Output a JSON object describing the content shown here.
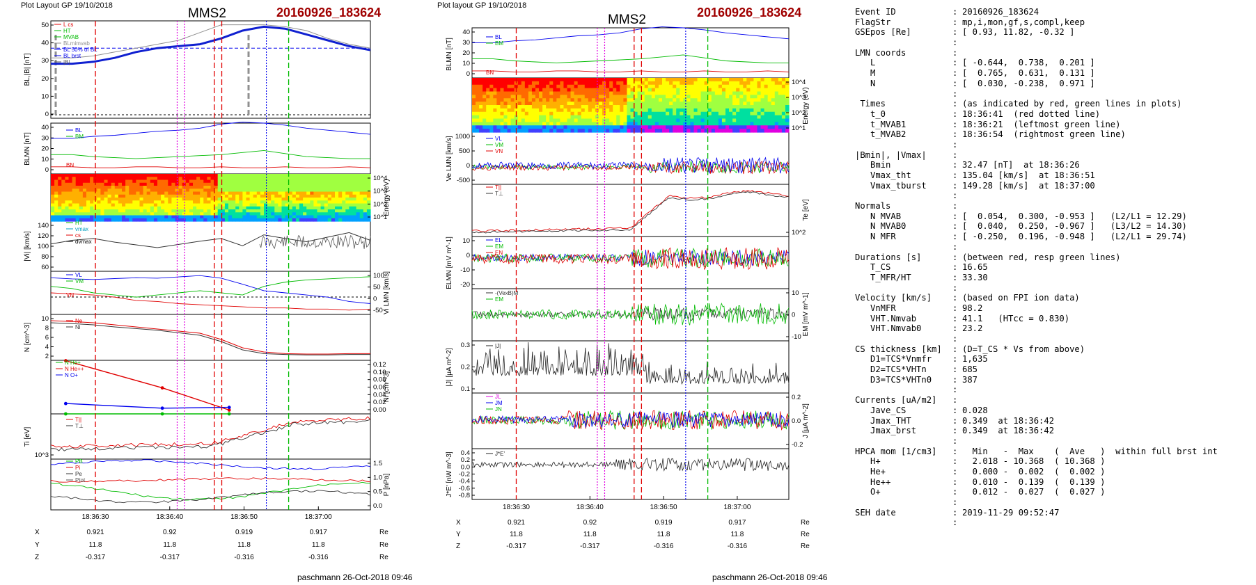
{
  "header_left": "Plot Layout GP 19/10/2018",
  "header_right": "Plot layout GP 19/10/2018",
  "spacecraft": "MMS2",
  "event_id": "20160926_183624",
  "footer": "paschmann 26-Oct-2018 09:46",
  "colors": {
    "event": "#a00000",
    "red": "#e00000",
    "green": "#00bb00",
    "blue": "#0000ee",
    "magenta": "#e000e0",
    "blueline": "#1020d0",
    "gray": "#909090"
  },
  "time_axis": {
    "range": [
      "18:36:24",
      "18:37:07"
    ],
    "ticks": [
      "18:36:30",
      "18:36:40",
      "18:36:50",
      "18:37:00"
    ],
    "markers": {
      "red_dashed": [
        "18:36:30",
        "18:36:46",
        "18:36:47"
      ],
      "magenta_dotted": [
        "18:36:41",
        "18:36:42"
      ],
      "blue_dotted": "18:36:53",
      "green_dashed": "18:36:56"
    }
  },
  "position_table": {
    "rows": [
      {
        "label": "X",
        "values": [
          "0.921",
          "0.92",
          "0.919",
          "0.917"
        ],
        "unit": "Re"
      },
      {
        "label": "Y",
        "values": [
          "11.8",
          "11.8",
          "11.8",
          "11.8"
        ],
        "unit": "Re"
      },
      {
        "label": "Z",
        "values": [
          "-0.317",
          "-0.317",
          "-0.316",
          "-0.316"
        ],
        "unit": "Re"
      }
    ]
  },
  "chart_data": [
    {
      "type": "line",
      "panel": "left-B",
      "ylabel": "BL,|B| [nT]",
      "ylim": [
        0,
        50
      ],
      "yticks": [
        "0",
        "10",
        "20",
        "30",
        "40",
        "50"
      ],
      "legend": [
        "L cs",
        "HT",
        "MVAB",
        "BLmimvab",
        "BL 50% of BL",
        "BL brst",
        "|B|"
      ],
      "series": [
        {
          "name": "BL",
          "values": [
            28,
            28,
            29,
            31,
            34,
            36,
            37,
            38,
            41,
            45,
            47,
            46,
            43,
            40,
            37,
            35
          ]
        },
        {
          "name": "|B|",
          "values": [
            31,
            31,
            32,
            34,
            36,
            38,
            40,
            44,
            48,
            48,
            48,
            47,
            45,
            41,
            38,
            36
          ]
        }
      ],
      "threshold": 36
    },
    {
      "type": "line",
      "panel": "left-BLMN",
      "ylabel": "BLMN [nT]",
      "ylim": [
        -5,
        45
      ],
      "yticks": [
        "0",
        "10",
        "20",
        "30",
        "40"
      ],
      "legend": [
        "BL",
        "BM",
        "BN"
      ],
      "series": [
        {
          "name": "BL",
          "values": [
            30,
            30,
            32,
            33,
            35,
            37,
            38,
            40,
            44,
            46,
            45,
            43,
            40,
            38,
            36,
            34
          ]
        },
        {
          "name": "BM",
          "values": [
            14,
            14,
            12,
            11,
            10,
            11,
            12,
            13,
            14,
            16,
            18,
            15,
            12,
            11,
            10,
            10
          ]
        },
        {
          "name": "BN",
          "values": [
            2,
            2,
            1,
            1,
            2,
            2,
            1,
            1,
            2,
            1,
            1,
            2,
            1,
            1,
            2,
            1
          ]
        }
      ]
    },
    {
      "type": "heatmap",
      "panel": "left-spectrogram",
      "ylabel": "Energy (eV)",
      "yticks": [
        "10^1",
        "10^2",
        "10^3",
        "10^4"
      ]
    },
    {
      "type": "line",
      "panel": "left-Vi",
      "ylabel": "|Vi| [km/s]",
      "ylim": [
        40,
        150
      ],
      "yticks": [
        "60",
        "80",
        "100",
        "120",
        "140"
      ],
      "legend": [
        "HT",
        "vmax",
        "cs",
        "dvmax"
      ],
      "series": [
        {
          "name": "|Vi|",
          "values": [
            100,
            108,
            112,
            104,
            98,
            92,
            99,
            106,
            112,
            96,
            120,
            112,
            105,
            115,
            125,
            108
          ]
        }
      ]
    },
    {
      "type": "line",
      "panel": "left-ViLMN",
      "ylabel": "Vi LMN [km/s]",
      "ylim": [
        -70,
        130
      ],
      "yticks": [
        "-50",
        "0",
        "50",
        "100"
      ],
      "legend": [
        "VL",
        "VM",
        "VN"
      ],
      "series": [
        {
          "name": "VL",
          "values": [
            100,
            95,
            92,
            96,
            100,
            98,
            104,
            110,
            98,
            70,
            40,
            30,
            20,
            10,
            -10,
            -20
          ]
        },
        {
          "name": "VM",
          "values": [
            60,
            50,
            30,
            20,
            10,
            20,
            30,
            40,
            30,
            20,
            60,
            80,
            90,
            95,
            100,
            105
          ]
        },
        {
          "name": "VN",
          "values": [
            30,
            25,
            20,
            10,
            -5,
            -10,
            -20,
            -25,
            -30,
            -35,
            -40,
            -40,
            -45,
            -45,
            -50,
            -45
          ]
        }
      ]
    },
    {
      "type": "line",
      "panel": "left-N",
      "ylabel": "N [cm^-3]",
      "ylim": [
        0,
        11
      ],
      "yticks": [
        "2",
        "4",
        "6",
        "8",
        "10"
      ],
      "legend": [
        "Ne",
        "Ni"
      ],
      "series": [
        {
          "name": "Ne",
          "values": [
            9.5,
            9.3,
            9,
            8.5,
            8,
            7.5,
            7,
            6.5,
            5,
            3,
            2,
            1.6,
            1.5,
            1.5,
            1.6,
            1.6
          ]
        },
        {
          "name": "Ni",
          "values": [
            9,
            8.8,
            8.5,
            8,
            7.6,
            7.2,
            6.6,
            6,
            4.5,
            2.5,
            1.6,
            1.4,
            1.3,
            1.3,
            1.4,
            1.4
          ]
        }
      ]
    },
    {
      "type": "line",
      "panel": "left-Nions",
      "ylabel": "Ni [cm^-3]",
      "ylim": [
        0,
        0.14
      ],
      "yticks": [
        "0.00",
        "0.02",
        "0.04",
        "0.06",
        "0.08",
        "0.10",
        "0.12"
      ],
      "legend": [
        "N He+",
        "N He++",
        "N O+"
      ],
      "series": [
        {
          "name": "N He+",
          "x": [
            "18:36:26",
            "18:36:39",
            "18:36:48"
          ],
          "values": [
            0.0,
            0.0,
            0.0
          ]
        },
        {
          "name": "N He++",
          "x": [
            "18:36:26",
            "18:36:39",
            "18:36:48"
          ],
          "values": [
            0.139,
            0.068,
            0.01
          ]
        },
        {
          "name": "N O+",
          "x": [
            "18:36:26",
            "18:36:39",
            "18:36:48"
          ],
          "values": [
            0.027,
            0.015,
            0.017
          ]
        }
      ]
    },
    {
      "type": "line",
      "panel": "left-Ti",
      "ylabel": "Ti [eV]",
      "yticks": [
        "10^3"
      ],
      "legend": [
        "T||",
        "T⊥"
      ]
    },
    {
      "type": "line",
      "panel": "left-P",
      "ylabel": "P [nPa]",
      "ylim": [
        0,
        1.6
      ],
      "yticks": [
        "0.0",
        "0.5",
        "1.0",
        "1.5"
      ],
      "legend": [
        "PB",
        "Pi",
        "Pe",
        "Ptot"
      ]
    },
    {
      "type": "line",
      "panel": "right-BLMN",
      "ylabel": "BLMN [nT]",
      "yticks": [
        "0",
        "10",
        "20",
        "30",
        "40"
      ],
      "legend": [
        "BL",
        "BM",
        "BN"
      ]
    },
    {
      "type": "heatmap",
      "panel": "right-spectrogram",
      "ylabel": "Energy (eV)",
      "yticks": [
        "10^1",
        "10^2",
        "10^3",
        "10^4"
      ]
    },
    {
      "type": "line",
      "panel": "right-Ve",
      "ylabel": "Ve LMN [km/s]",
      "yticks": [
        "-500",
        "0",
        "500",
        "1000"
      ],
      "legend": [
        "VL",
        "VM",
        "VN"
      ]
    },
    {
      "type": "line",
      "panel": "right-Te",
      "ylabel": "Te [eV]",
      "yticks": [
        "10^2"
      ],
      "legend": [
        "T||",
        "T⊥"
      ]
    },
    {
      "type": "line",
      "panel": "right-E",
      "ylabel": "ELMN [mV m^-1]",
      "yticks": [
        "-20",
        "-10",
        "0",
        "10"
      ],
      "legend": [
        "EL",
        "EM",
        "EN"
      ]
    },
    {
      "type": "line",
      "panel": "right-EM",
      "ylabel": "EM [mV m^-1]",
      "yticks": [
        "-10",
        "0",
        "10"
      ],
      "legend": [
        "-(VexB)M",
        "EM"
      ]
    },
    {
      "type": "line",
      "panel": "right-J",
      "ylabel": "|J| [μA m^-2]",
      "yticks": [
        "0.1",
        "0.2",
        "0.3"
      ],
      "legend": [
        "|J|"
      ]
    },
    {
      "type": "line",
      "panel": "right-JLMN",
      "ylabel": "J [μA m^-2]",
      "yticks": [
        "-0.2",
        "0.0",
        "0.2"
      ],
      "legend": [
        "JL",
        "JM",
        "JN"
      ]
    },
    {
      "type": "line",
      "panel": "right-JE",
      "ylabel": "J*E' [nW m^-3]",
      "yticks": [
        "-0.8",
        "-0.6",
        "-0.4",
        "-0.2",
        "0.0",
        "0.2",
        "0.4"
      ],
      "legend": [
        "J*E'"
      ]
    }
  ],
  "info_panel": [
    {
      "l": "Event ID",
      "v": "20160926_183624"
    },
    {
      "l": "FlagStr",
      "v": "mp,i,mon,gf,s,compl,keep"
    },
    {
      "l": "GSEpos [Re]",
      "v": "[ 0.93, 11.82, -0.32 ]"
    },
    {
      "l": "",
      "v": ""
    },
    {
      "l": "LMN coords",
      "v": ""
    },
    {
      "l": "   L",
      "v": "[ -0.644,  0.738,  0.201 ]"
    },
    {
      "l": "   M",
      "v": "[  0.765,  0.631,  0.131 ]"
    },
    {
      "l": "   N",
      "v": "[  0.030, -0.238,  0.971 ]"
    },
    {
      "l": "",
      "v": ""
    },
    {
      "l": " Times",
      "v": "(as indicated by red, green lines in plots)"
    },
    {
      "l": "   t_0",
      "v": "18:36:41  (red dotted line)"
    },
    {
      "l": "   t_MVAB1",
      "v": "18:36:21  (leftmost green line)"
    },
    {
      "l": "   t_MVAB2",
      "v": "18:36:54  (rightmost green line)"
    },
    {
      "l": "",
      "v": ""
    },
    {
      "l": "|Bmin|, |Vmax|",
      "v": ""
    },
    {
      "l": "   Bmin",
      "v": "32.47 [nT]  at 18:36:26"
    },
    {
      "l": "   Vmax_tht",
      "v": "135.04 [km/s]  at 18:36:51"
    },
    {
      "l": "   Vmax_tburst",
      "v": "149.28 [km/s]  at 18:37:00"
    },
    {
      "l": "",
      "v": ""
    },
    {
      "l": "Normals",
      "v": ""
    },
    {
      "l": "   N MVAB",
      "v": "[  0.054,  0.300, -0.953 ]   (L2/L1 = 12.29)"
    },
    {
      "l": "   N MVAB0",
      "v": "[  0.040,  0.250, -0.967 ]   (L3/L2 = 14.30)"
    },
    {
      "l": "   N MFR",
      "v": "[ -0.250,  0.196, -0.948 ]   (L2/L1 = 29.74)"
    },
    {
      "l": "",
      "v": ""
    },
    {
      "l": "Durations [s]",
      "v": "(between red, resp green lines)"
    },
    {
      "l": "   T_CS",
      "v": "16.65"
    },
    {
      "l": "   T_MFR/HT",
      "v": "33.30"
    },
    {
      "l": "",
      "v": ""
    },
    {
      "l": "Velocity [km/s]",
      "v": "(based on FPI ion data)"
    },
    {
      "l": "   VnMFR",
      "v": "98.2"
    },
    {
      "l": "   VHT.Nmvab",
      "v": "41.1   (HTcc = 0.830)"
    },
    {
      "l": "   VHT.Nmvab0",
      "v": "23.2"
    },
    {
      "l": "",
      "v": ""
    },
    {
      "l": "CS thickness [km]",
      "v": "(D=T_CS * Vs from above)"
    },
    {
      "l": "   D1=TCS*Vnmfr",
      "v": "1,635"
    },
    {
      "l": "   D2=TCS*VHTn",
      "v": "685"
    },
    {
      "l": "   D3=TCS*VHTn0",
      "v": "387"
    },
    {
      "l": "",
      "v": ""
    },
    {
      "l": "Currents [uA/m2]",
      "v": ""
    },
    {
      "l": "   Jave_CS",
      "v": "0.028"
    },
    {
      "l": "   Jmax_THT",
      "v": "0.349  at 18:36:42"
    },
    {
      "l": "   Jmax_brst",
      "v": "0.349  at 18:36:42"
    },
    {
      "l": "",
      "v": ""
    },
    {
      "l": "HPCA mom [1/cm3]",
      "v": "  Min   -  Max    (  Ave   )  within full brst int"
    },
    {
      "l": "   H+",
      "v": "  2.018 - 10.368  ( 10.368 )"
    },
    {
      "l": "   He+",
      "v": "  0.000 -  0.002  (  0.002 )"
    },
    {
      "l": "   He++",
      "v": "  0.010 -  0.139  (  0.139 )"
    },
    {
      "l": "   O+",
      "v": "  0.012 -  0.027  (  0.027 )"
    },
    {
      "l": "",
      "v": ""
    },
    {
      "l": "SEH date",
      "v": "2019-11-29 09:52:47"
    },
    {
      "l": "",
      "v": ""
    }
  ]
}
